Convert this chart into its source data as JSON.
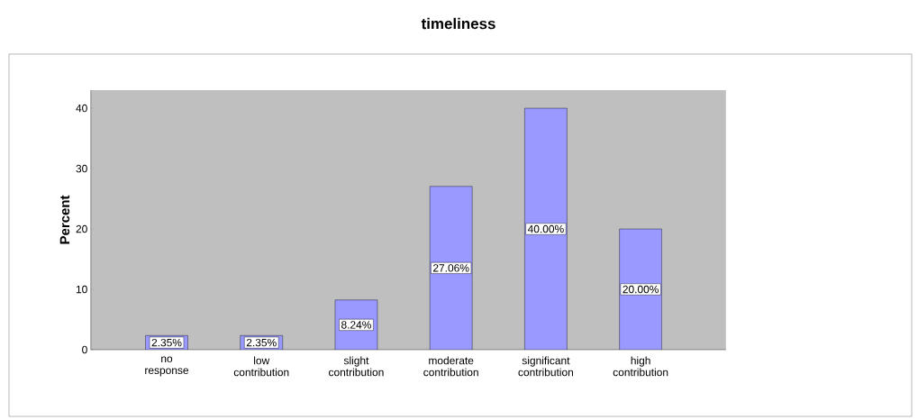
{
  "chart_data": {
    "type": "bar",
    "title": "timeliness",
    "ylabel": "Percent",
    "categories": [
      "no response",
      "low contribution",
      "slight contribution",
      "moderate contribution",
      "significant contribution",
      "high contribution"
    ],
    "values": [
      2.35,
      2.35,
      8.24,
      27.06,
      40.0,
      20.0
    ],
    "value_labels": [
      "2.35%",
      "2.35%",
      "8.24%",
      "27.06%",
      "40.00%",
      "20.00%"
    ],
    "color": "#9999ff",
    "ylim": [
      0,
      43
    ],
    "yticks": [
      0,
      10,
      20,
      30,
      40
    ]
  }
}
